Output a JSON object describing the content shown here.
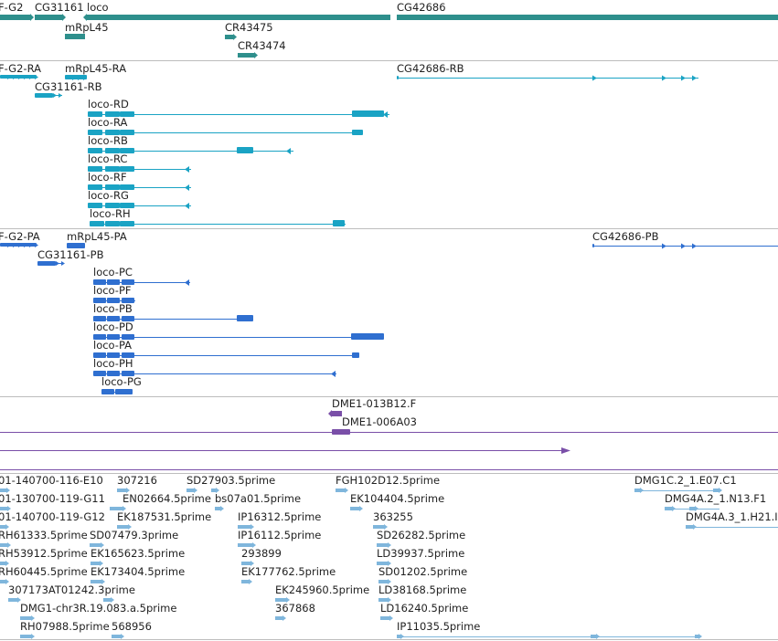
{
  "tracks": [
    {
      "id": "genes",
      "color": "#2e8f8c",
      "features": [
        {
          "label": "F-G2"
        },
        {
          "label": "CG31161"
        },
        {
          "label": "loco"
        },
        {
          "label": "CG42686"
        },
        {
          "label": "mRpL45"
        },
        {
          "label": "CR43475"
        },
        {
          "label": "CR43474"
        }
      ]
    },
    {
      "id": "transcripts-rna",
      "color": "#1aa3c4",
      "features": [
        {
          "label": "F-G2-RA"
        },
        {
          "label": "mRpL45-RA"
        },
        {
          "label": "CG31161-RB"
        },
        {
          "label": "CG42686-RB"
        },
        {
          "label": "loco-RD"
        },
        {
          "label": "loco-RA"
        },
        {
          "label": "loco-RB"
        },
        {
          "label": "loco-RC"
        },
        {
          "label": "loco-RF"
        },
        {
          "label": "loco-RG"
        },
        {
          "label": "loco-RH"
        }
      ]
    },
    {
      "id": "transcripts-protein",
      "color": "#2f6fd0",
      "features": [
        {
          "label": "F-G2-PA"
        },
        {
          "label": "mRpL45-PA"
        },
        {
          "label": "CG31161-PB"
        },
        {
          "label": "CG42686-PB"
        },
        {
          "label": "loco-PC"
        },
        {
          "label": "loco-PF"
        },
        {
          "label": "loco-PB"
        },
        {
          "label": "loco-PD"
        },
        {
          "label": "loco-PA"
        },
        {
          "label": "loco-PH"
        },
        {
          "label": "loco-PG"
        }
      ]
    },
    {
      "id": "clones",
      "color": "#7a4fa8",
      "features": [
        {
          "label": "DME1-013B12.F"
        },
        {
          "label": "DME1-006A03"
        }
      ]
    },
    {
      "id": "ests",
      "color": "#7fb6dc",
      "features": [
        {
          "label": "01-140700-116-E10"
        },
        {
          "label": "307216"
        },
        {
          "label": "SD27903.5prime"
        },
        {
          "label": "FGH102D12.5prime"
        },
        {
          "label": "DMG1C.2_1.E07.C1"
        },
        {
          "label": "01-130700-119-G11"
        },
        {
          "label": "EN02664.5prime"
        },
        {
          "label": "bs07a01.5prime"
        },
        {
          "label": "EK104404.5prime"
        },
        {
          "label": "DMG4A.2_1.N13.F1"
        },
        {
          "label": "01-140700-119-G12"
        },
        {
          "label": "EK187531.5prime"
        },
        {
          "label": "IP16312.5prime"
        },
        {
          "label": "363255"
        },
        {
          "label": "DMG4A.3_1.H21.I"
        },
        {
          "label": "RH61333.5prime"
        },
        {
          "label": "SD07479.3prime"
        },
        {
          "label": "IP16112.5prime"
        },
        {
          "label": "SD26282.5prime"
        },
        {
          "label": "RH53912.5prime"
        },
        {
          "label": "EK165623.5prime"
        },
        {
          "label": "293899"
        },
        {
          "label": "LD39937.5prime"
        },
        {
          "label": "RH60445.5prime"
        },
        {
          "label": "EK173404.5prime"
        },
        {
          "label": "EK177762.5prime"
        },
        {
          "label": "SD01202.5prime"
        },
        {
          "label": "307173AT01242.3prime"
        },
        {
          "label": "EK245960.5prime"
        },
        {
          "label": "LD38168.5prime"
        },
        {
          "label": "DMG1-chr3R.19.083.a.5prime"
        },
        {
          "label": "367868"
        },
        {
          "label": "LD16240.5prime"
        },
        {
          "label": "RH07988.5prime"
        },
        {
          "label": "568956"
        },
        {
          "label": "IP11035.5prime"
        }
      ]
    }
  ]
}
